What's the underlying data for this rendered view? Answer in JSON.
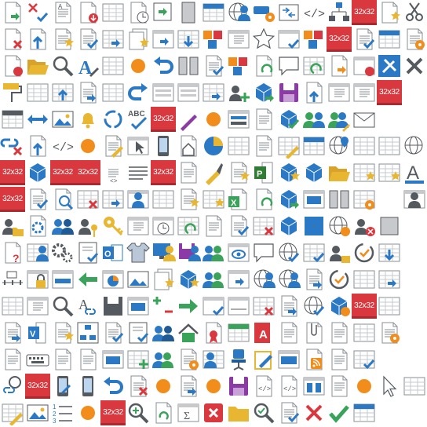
{
  "sheet": {
    "placeholder_label": "32x32",
    "icons": [
      [
        "doc-green-arrow",
        "cross-check",
        "doc-lines-a",
        "doc-red-arrow",
        "grid",
        "doc-clock",
        "square-green-arrow",
        "panel",
        "grid-blue-header",
        "globe-people",
        "link-gear",
        "arrows-box",
        "code-tags",
        "org-chart",
        "placeholder",
        "doc-star-gold",
        "cut-hand"
      ],
      [
        "doc-red-x",
        "doc-blue-arrow",
        "doc-star",
        "doc-check",
        "grid-arrow",
        "docs-stack",
        "window-blue-arrow",
        "grid-arrow-down",
        "cubes-red",
        "window-lines",
        "star-outline",
        "check-window",
        "cubes-red",
        "placeholder",
        "doc-check",
        "grid-blue-header",
        "doc-gear"
      ],
      [
        "doc-red-down",
        "folder-open",
        "magnifier",
        "letter-pen",
        "grid-lines",
        "orange-dot",
        "undo-blue",
        "columns-blue",
        "doc-check",
        "cubes-lines",
        "doc-recycle",
        "speech-bubble",
        "grid-refresh",
        "doc-orange-arrow",
        "window-red",
        "tools-blue",
        "x-gray"
      ],
      [
        "paint-roller",
        "grid",
        "grid-up",
        "doc-arrow",
        "grid-lines",
        "redo-blue",
        "rows-lines",
        "rows-lines",
        "grid-arrow",
        "person-plus",
        "cubes-arrow",
        "save-purple",
        "doc-arrow-up",
        "window-lines",
        "window-list",
        "placeholder",
        ""
      ],
      [
        "table-header",
        "double-arrow",
        "picture",
        "bell",
        "sync-circle",
        "abc-check",
        "placeholder",
        "cut-pen",
        "orange-dot",
        "rows-bars",
        "doc-lines",
        "cubes-check",
        "people-pair",
        "people-pen",
        "envelope",
        "",
        ""
      ],
      [
        "link-x",
        "doc-blue-arrow",
        "code-tags",
        "orange-dot",
        "doc-pen",
        "window-cursor",
        "phone-blue",
        "house-doc",
        "pie-chart",
        "grid",
        "doc-lines",
        "grid-pen",
        "grid-blue-header",
        "globe-pin",
        "grid",
        "grid",
        "globe"
      ],
      [
        "placeholder",
        "cube-blue",
        "placeholder",
        "placeholder",
        "align-code",
        "lines",
        "placeholder",
        "doc-lines",
        "paint-brush",
        "doc-star",
        "project-green",
        "cube-star",
        "cubes-blue",
        "folder-open",
        "grid-star",
        "grid-star",
        "letter-underline"
      ],
      [
        "placeholder",
        "doc-check",
        "doc-magnifier",
        "grid-x",
        "grid-arrow",
        "people-window",
        "grid",
        "doc-star",
        "grid-star",
        "excel-doc",
        "doc-recycle",
        "cube-arrow",
        "window-blue",
        "columns-blue",
        "grid-gear",
        "",
        "person-window"
      ],
      [
        "person-folder",
        "gear-doc",
        "people-blue",
        "person-key",
        "key-gold",
        "window-lines",
        "clock-window",
        "grid-refresh",
        "doc-lines",
        "doc-check",
        "grid-x",
        "cube-blue",
        "square-blue",
        "globe-gear",
        "person-x",
        "window-gray",
        ""
      ],
      [
        "doc-question",
        "grid-people",
        "gears",
        "checklist",
        "outlook",
        "tshirt",
        "monitor-user",
        "save-person",
        "people-arrow",
        "eye-window",
        "speech-bubble",
        "globe-check",
        "grid-check",
        "person-lock",
        "history-check",
        "grid-down",
        ""
      ],
      [
        "timeline",
        "window-lock",
        "window-bar",
        "arrow-left",
        "window-pie",
        "picture-frame",
        "docs-star",
        "cube-star",
        "people-chart",
        "window-arrow",
        "globe-people",
        "globe-people",
        "doc-arrow",
        "history-check",
        "grid",
        "grid-arrow",
        ""
      ],
      [
        "grid-lines",
        "window-lines",
        "magnifier",
        "letter-link",
        "save-window",
        "window-blue",
        "plus-minus",
        "arrow-right",
        "check-window",
        "timeline-box",
        "grid-x",
        "doc-arrow",
        "globe-check",
        "cube-gear",
        "placeholder",
        "grid",
        ""
      ],
      [
        "doc-arrow",
        "visio-doc",
        "doc-star-lines",
        "org-box",
        "doc-check",
        "checklist",
        "people-blue",
        "house-green",
        "doc-cert",
        "grid-green",
        "access-doc",
        "doc-lines",
        "clip-doc",
        "doc-lines",
        "grid-window",
        "doc-gear",
        ""
      ],
      [
        "doc-lines",
        "keyboard",
        "doc-lines",
        "doc-lines",
        "window-blue",
        "grid-plus",
        "people-gear",
        "doc-gear",
        "people-grid",
        "chair-blue",
        "pen-clip",
        "rows-blue",
        "rss-doc",
        "doc-lines",
        "grid-check",
        "",
        ""
      ],
      [
        "magnifier-link",
        "placeholder",
        "phone-pen",
        "phone-blue",
        "undo-blue",
        "doc-x",
        "orange-dot",
        "doc-arrow",
        "orange-dot",
        "save-purple",
        "doc-code",
        "doc-code",
        "window-columns",
        "doc-lines",
        "orange-dot",
        "cursor",
        "grid"
      ],
      [
        "grid-pen",
        "picture",
        "list-numbered",
        "orange-dot",
        "placeholder",
        "magnifier-plus",
        "refresh-doc",
        "sum-window",
        "x-red-box",
        "folder",
        "magnifier-check",
        "doc-check",
        "x-red",
        "check-green",
        "grid-blue-header",
        "",
        ""
      ]
    ],
    "colors": {
      "blue": "#2b79c5",
      "dark_blue": "#1f5a96",
      "green": "#3aa35a",
      "red": "#d9383f",
      "orange": "#f28c1a",
      "gold": "#e8b631",
      "purple": "#8c3aa6",
      "gray": "#555a60",
      "light_gray": "#c7c9cc",
      "line_gray": "#8a8f95"
    }
  }
}
